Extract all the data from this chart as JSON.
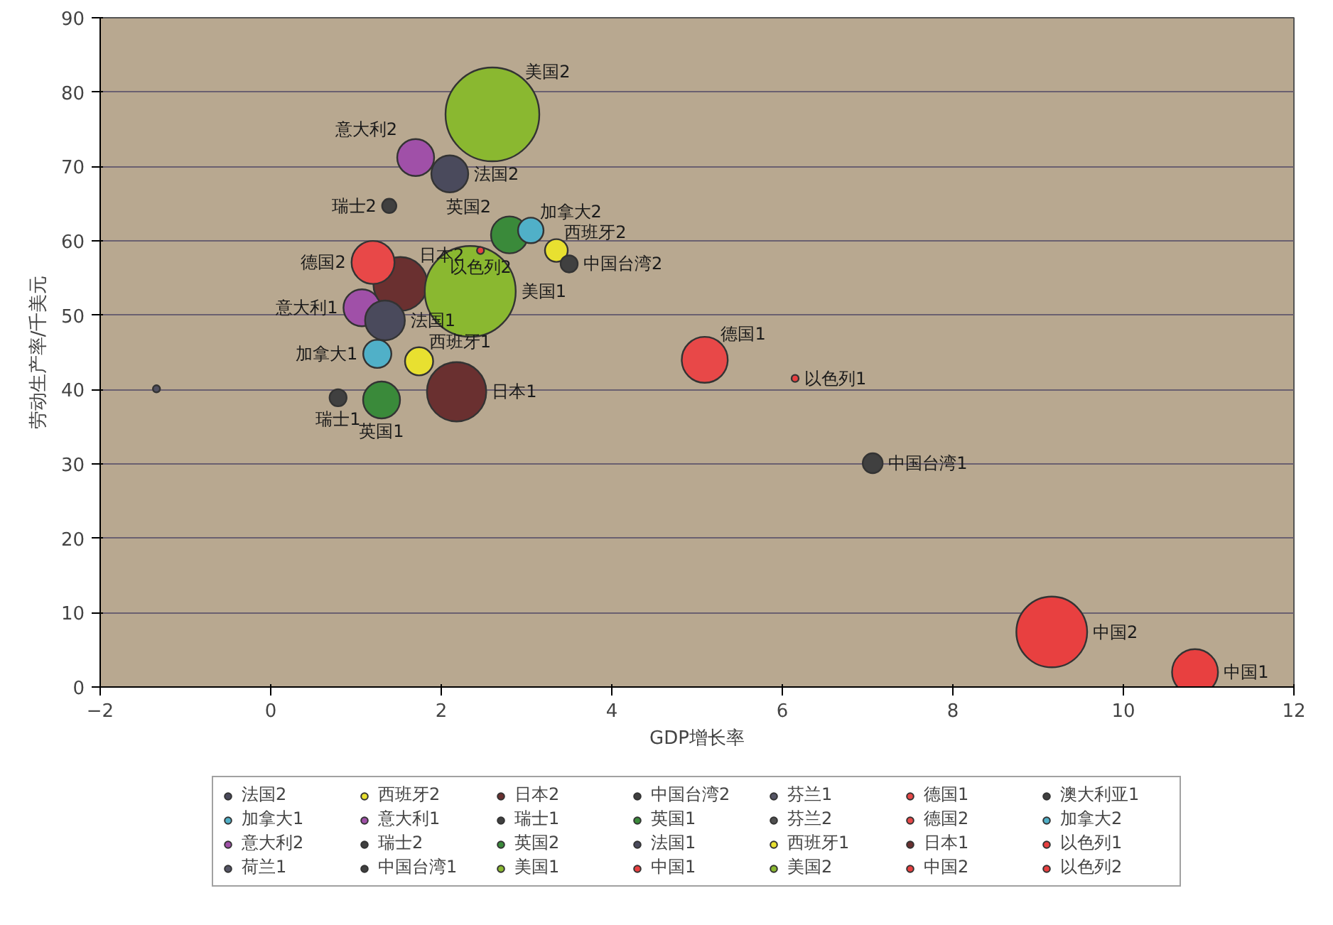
{
  "chart_data": {
    "type": "bubble",
    "xlabel": "GDP增长率",
    "ylabel": "劳动生产率/千美元",
    "xlim": [
      -2,
      12
    ],
    "xticks": [
      -2,
      0,
      2,
      4,
      6,
      8,
      10,
      12
    ],
    "ylim": [
      0,
      90
    ],
    "yticks": [
      0,
      10,
      20,
      30,
      40,
      50,
      60,
      70,
      80,
      90
    ],
    "grid": "y",
    "legend": "bottom",
    "series": [
      {
        "name": "法国2",
        "color": "#4a4a5c",
        "x": [
          2.1
        ],
        "values": [
          69.0
        ],
        "sizes": [
          0.155
        ]
      },
      {
        "name": "加拿大1",
        "color": "#50b0c8",
        "x": [
          1.25
        ],
        "values": [
          44.8
        ],
        "sizes": [
          0.09
        ]
      },
      {
        "name": "意大利2",
        "color": "#a050a8",
        "x": [
          1.7
        ],
        "values": [
          71.2
        ],
        "sizes": [
          0.155
        ]
      },
      {
        "name": "荷兰1",
        "color": "#555566"
      },
      {
        "name": "西班牙2",
        "color": "#e8e030",
        "x": [
          3.35
        ],
        "values": [
          58.7
        ],
        "sizes": [
          0.059
        ]
      },
      {
        "name": "意大利1",
        "color": "#a050a8",
        "x": [
          1.07
        ],
        "values": [
          51.0
        ],
        "sizes": [
          0.155
        ]
      },
      {
        "name": "瑞士2",
        "color": "#404040",
        "x": [
          1.39
        ],
        "values": [
          64.7
        ],
        "sizes": [
          0.023
        ]
      },
      {
        "name": "中国台湾1",
        "color": "#404040",
        "x": [
          7.06
        ],
        "values": [
          30.1
        ],
        "sizes": [
          0.045
        ]
      },
      {
        "name": "日本2",
        "color": "#6a3030",
        "x": [
          1.52
        ],
        "values": [
          54.2
        ],
        "sizes": [
          0.33
        ]
      },
      {
        "name": "瑞士1",
        "color": "#404040",
        "x": [
          0.79
        ],
        "values": [
          38.9
        ],
        "sizes": [
          0.033
        ]
      },
      {
        "name": "英国2",
        "color": "#3a8a3a",
        "x": [
          2.8
        ],
        "values": [
          60.8
        ],
        "sizes": [
          0.155
        ]
      },
      {
        "name": "美国1",
        "color": "#8ab830",
        "x": [
          2.34
        ],
        "values": [
          53.2
        ],
        "sizes": [
          0.94
        ]
      },
      {
        "name": "中国台湾2",
        "color": "#404040",
        "x": [
          3.5
        ],
        "values": [
          56.9
        ],
        "sizes": [
          0.033
        ]
      },
      {
        "name": "英国1",
        "color": "#3a8a3a",
        "x": [
          1.3
        ],
        "values": [
          38.6
        ],
        "sizes": [
          0.155
        ]
      },
      {
        "name": "法国1",
        "color": "#4a4a5c",
        "x": [
          1.34
        ],
        "values": [
          49.3
        ],
        "sizes": [
          0.18
        ]
      },
      {
        "name": "中国1",
        "color": "#e84040",
        "x": [
          10.84
        ],
        "values": [
          2.0
        ],
        "sizes": [
          0.24
        ]
      },
      {
        "name": "芬兰1",
        "color": "#555566"
      },
      {
        "name": "芬兰2",
        "color": "#505050"
      },
      {
        "name": "西班牙1",
        "color": "#e8e030",
        "x": [
          1.74
        ],
        "values": [
          43.8
        ],
        "sizes": [
          0.09
        ]
      },
      {
        "name": "美国2",
        "color": "#8ab830",
        "x": [
          2.6
        ],
        "values": [
          77.0
        ],
        "sizes": [
          1
        ]
      },
      {
        "name": "德国1",
        "color": "#e84848",
        "x": [
          5.09
        ],
        "values": [
          44.0
        ],
        "sizes": [
          0.24
        ]
      },
      {
        "name": "德国2",
        "color": "#e84848",
        "x": [
          1.2
        ],
        "values": [
          57.1
        ],
        "sizes": [
          0.21
        ]
      },
      {
        "name": "日本1",
        "color": "#6a3030",
        "x": [
          2.18
        ],
        "values": [
          39.7
        ],
        "sizes": [
          0.4
        ]
      },
      {
        "name": "中国2",
        "color": "#e84040",
        "x": [
          9.16
        ],
        "values": [
          7.4
        ],
        "sizes": [
          0.57
        ]
      },
      {
        "name": "澳大利亚1",
        "color": "#404040"
      },
      {
        "name": "加拿大2",
        "color": "#50b0c8",
        "x": [
          3.05
        ],
        "values": [
          61.4
        ],
        "sizes": [
          0.074
        ]
      },
      {
        "name": "以色列1",
        "color": "#e84040",
        "x": [
          6.15
        ],
        "values": [
          41.5
        ],
        "sizes": [
          0.004
        ]
      },
      {
        "name": "以色列2",
        "color": "#e84040",
        "x": [
          2.46
        ],
        "values": [
          58.7
        ],
        "sizes": [
          0.004
        ]
      },
      {
        "color": "#505060",
        "x": [
          -1.34
        ],
        "values": [
          40.1
        ],
        "sizes": [
          0.004
        ]
      }
    ]
  }
}
